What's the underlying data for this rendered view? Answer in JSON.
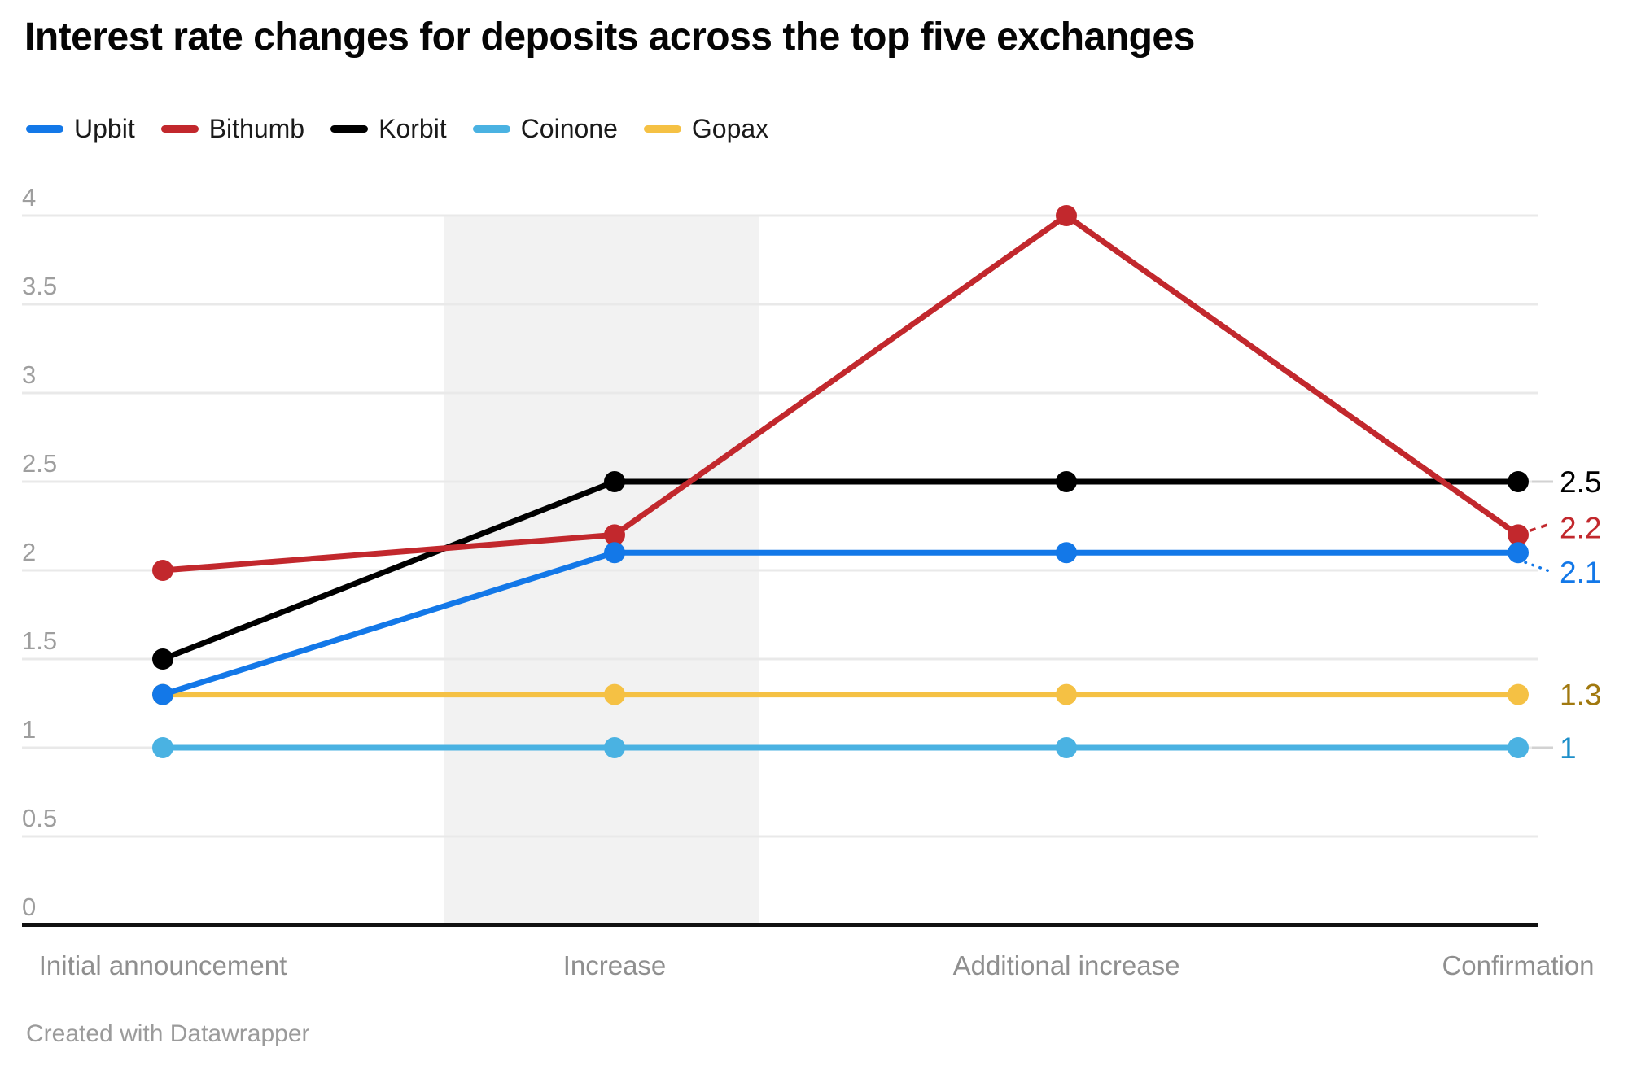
{
  "title": "Interest rate changes for deposits across the top five exchanges",
  "attribution": "Created with Datawrapper",
  "colors": {
    "grid": "#e9e9e9",
    "axis_baseline": "#111111",
    "band": "#f2f2f2",
    "y_tick_label": "#9e9e9e",
    "x_tick_label": "#8f8f8f",
    "leader_line": "#d2d2d2",
    "title_text": "#050505",
    "legend_text": "#1a1a1a",
    "footer_text": "#9b9b9b"
  },
  "chart_data": {
    "type": "line",
    "title": "Interest rate changes for deposits across the top five exchanges",
    "categories": [
      "Initial announcement",
      "Increase",
      "Additional increase",
      "Confirmation"
    ],
    "y_ticks": [
      4,
      3.5,
      3,
      2.5,
      2,
      1.5,
      1,
      0.5,
      0
    ],
    "y_tick_labels": [
      "4",
      "3.5",
      "3",
      "2.5",
      "2",
      "1.5",
      "1",
      "0.5",
      "0"
    ],
    "ylim": [
      0,
      4
    ],
    "grid": true,
    "legend_position": "top",
    "highlight_band": {
      "around_category": "Increase",
      "color": "#f2f2f2"
    },
    "series": [
      {
        "name": "Upbit",
        "color": "#1378e8",
        "values": [
          1.3,
          2.1,
          2.1,
          2.1
        ],
        "end_label": "2.1",
        "end_label_color": "#1378e8"
      },
      {
        "name": "Bithumb",
        "color": "#c2282d",
        "values": [
          2.0,
          2.2,
          4.0,
          2.2
        ],
        "end_label": "2.2",
        "end_label_color": "#c2282d"
      },
      {
        "name": "Korbit",
        "color": "#000000",
        "values": [
          1.5,
          2.5,
          2.5,
          2.5
        ],
        "end_label": "2.5",
        "end_label_color": "#000000"
      },
      {
        "name": "Coinone",
        "color": "#4ab2e2",
        "values": [
          1.0,
          1.0,
          1.0,
          1.0
        ],
        "end_label": "1",
        "end_label_color": "#1e8fc9"
      },
      {
        "name": "Gopax",
        "color": "#f5c144",
        "values": [
          1.3,
          1.3,
          1.3,
          1.3
        ],
        "end_label": "1.3",
        "end_label_color": "#a1790f"
      }
    ]
  }
}
